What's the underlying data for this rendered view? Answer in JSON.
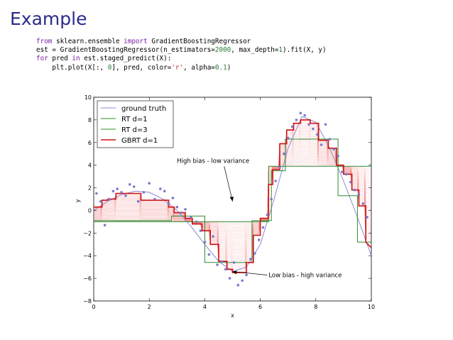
{
  "slide": {
    "title": "Example"
  },
  "code": {
    "line1": {
      "kw1": "from",
      "mod": " sklearn.ensemble ",
      "kw2": "import",
      "rest": " GradientBoostingRegressor"
    },
    "line2": {
      "pre": "est = GradientBoostingRegressor(n_estimators=",
      "n": "2000",
      "mid": ", max_depth=",
      "d": "1",
      "post": ").fit(X, y)"
    },
    "line3": {
      "kw1": "for",
      "pre": " pred ",
      "kw2": "in",
      "post": " est.staged_predict(X):"
    },
    "line4": {
      "pre": "    plt.plot(X[:, ",
      "zero": "0",
      "mid": "], pred, color=",
      "color": "'r'",
      "mid2": ", alpha=",
      "alpha": "0.1",
      "post": ")"
    }
  },
  "chart_data": {
    "type": "line",
    "xlabel": "x",
    "ylabel": "y",
    "xlim": [
      0,
      10
    ],
    "ylim": [
      -8,
      10
    ],
    "x_ticks": [
      "0",
      "2",
      "4",
      "6",
      "8",
      "10"
    ],
    "y_ticks": [
      "−8",
      "−6",
      "−4",
      "−2",
      "0",
      "2",
      "4",
      "6",
      "8",
      "10"
    ],
    "legend_position": "top-left",
    "legend": [
      "ground truth",
      "RT d=1",
      "RT d=3",
      "GBRT d=1"
    ],
    "annotations": [
      {
        "text": "High bias - low variance",
        "xy": [
          5.0,
          0.8
        ],
        "xytext": [
          3.0,
          4.2
        ]
      },
      {
        "text": "Low bias - high variance",
        "xy": [
          5.0,
          -5.4
        ],
        "xytext": [
          6.3,
          -5.9
        ]
      }
    ],
    "colors": {
      "ground_truth": "#8a8ad0",
      "rt": "#2e8b2e",
      "gbrt": "#d01010",
      "points": "#7a7ad0",
      "staged": "#f08080"
    },
    "scatter": {
      "x": [
        0.1,
        0.25,
        0.4,
        0.55,
        0.7,
        0.85,
        1.0,
        1.15,
        1.3,
        1.45,
        1.6,
        1.8,
        2.0,
        2.2,
        2.4,
        2.55,
        2.7,
        2.85,
        3.0,
        3.15,
        3.3,
        3.5,
        3.7,
        3.85,
        4.0,
        4.15,
        4.3,
        4.45,
        4.6,
        4.75,
        4.9,
        5.05,
        5.2,
        5.35,
        5.5,
        5.65,
        5.8,
        5.95,
        6.1,
        6.25,
        6.4,
        6.55,
        6.7,
        6.85,
        7.0,
        7.15,
        7.3,
        7.45,
        7.6,
        7.75,
        7.9,
        8.05,
        8.2,
        8.35,
        8.5,
        8.65,
        8.8,
        8.95,
        9.1,
        9.25,
        9.4,
        9.55,
        9.7,
        9.85,
        10.0
      ],
      "y": [
        1.5,
        0.8,
        -1.3,
        1.0,
        1.7,
        1.9,
        1.6,
        1.3,
        2.3,
        2.1,
        0.8,
        1.6,
        2.4,
        1.0,
        1.9,
        1.7,
        0.6,
        1.1,
        0.3,
        -0.2,
        0.1,
        -0.6,
        -1.0,
        -1.8,
        -2.8,
        -3.9,
        -2.3,
        -4.8,
        -4.5,
        -5.2,
        -6.0,
        -4.6,
        -6.6,
        -6.2,
        -5.7,
        -4.3,
        -3.8,
        -2.6,
        -1.5,
        -0.4,
        1.0,
        2.6,
        3.8,
        5.0,
        6.4,
        7.4,
        8.0,
        8.6,
        8.4,
        7.6,
        7.2,
        6.7,
        5.8,
        7.6,
        6.3,
        5.4,
        4.8,
        3.4,
        3.2,
        2.5,
        1.8,
        1.4,
        0.6,
        -0.6,
        -3.8
      ]
    },
    "ground_truth": {
      "x": [
        0,
        0.5,
        1.0,
        1.5,
        2.0,
        2.5,
        3.0,
        3.5,
        4.0,
        4.5,
        5.0,
        5.5,
        6.0,
        6.5,
        7.0,
        7.5,
        8.0,
        8.5,
        9.0,
        9.5,
        10.0
      ],
      "y": [
        0.0,
        0.8,
        1.4,
        1.7,
        1.6,
        1.0,
        0.0,
        -1.4,
        -3.0,
        -4.5,
        -5.4,
        -5.0,
        -3.0,
        1.0,
        5.5,
        8.3,
        7.8,
        5.5,
        2.6,
        -0.6,
        -4.0
      ]
    },
    "rt_d1": {
      "x": [
        0,
        6.3,
        6.3,
        10
      ],
      "y": [
        -1.0,
        -1.0,
        3.9,
        3.9
      ]
    },
    "rt_d3": {
      "x": [
        0,
        2.8,
        2.8,
        4.0,
        4.0,
        5.7,
        5.7,
        6.4,
        6.4,
        6.9,
        6.9,
        8.8,
        8.8,
        9.5,
        9.5,
        10
      ],
      "y": [
        -0.9,
        -0.9,
        -0.5,
        -0.5,
        -4.6,
        -4.6,
        -0.9,
        -0.9,
        3.5,
        3.5,
        6.3,
        6.3,
        1.3,
        1.3,
        -2.8,
        -2.8
      ]
    },
    "gbrt_d1": {
      "x": [
        0,
        0.3,
        0.3,
        0.5,
        0.5,
        0.8,
        0.8,
        1.7,
        1.7,
        2.7,
        2.7,
        2.9,
        2.9,
        3.3,
        3.3,
        3.55,
        3.55,
        3.9,
        3.9,
        4.2,
        4.2,
        4.5,
        4.5,
        4.8,
        4.8,
        5.0,
        5.0,
        5.5,
        5.5,
        5.75,
        5.75,
        6.0,
        6.0,
        6.3,
        6.3,
        6.45,
        6.45,
        6.7,
        6.7,
        6.95,
        6.95,
        7.2,
        7.2,
        7.45,
        7.45,
        7.8,
        7.8,
        8.1,
        8.1,
        8.45,
        8.45,
        8.75,
        8.75,
        9.0,
        9.0,
        9.3,
        9.3,
        9.55,
        9.55,
        9.8,
        9.8,
        10
      ],
      "y": [
        0.3,
        0.3,
        0.9,
        0.9,
        1.0,
        1.0,
        1.5,
        1.5,
        0.9,
        0.9,
        0.3,
        0.3,
        -0.2,
        -0.2,
        -0.7,
        -0.7,
        -1.2,
        -1.2,
        -1.8,
        -1.8,
        -3.0,
        -3.0,
        -4.5,
        -4.5,
        -5.2,
        -5.2,
        -5.5,
        -5.5,
        -4.6,
        -4.6,
        -2.2,
        -2.2,
        -0.7,
        -0.7,
        2.3,
        2.3,
        3.6,
        3.6,
        5.9,
        5.9,
        7.1,
        7.1,
        7.7,
        7.7,
        8.0,
        8.0,
        7.7,
        7.7,
        6.2,
        6.2,
        5.5,
        5.5,
        4.0,
        4.0,
        3.2,
        3.2,
        1.8,
        1.8,
        0.4,
        0.4,
        -2.8,
        -3.3
      ]
    }
  }
}
